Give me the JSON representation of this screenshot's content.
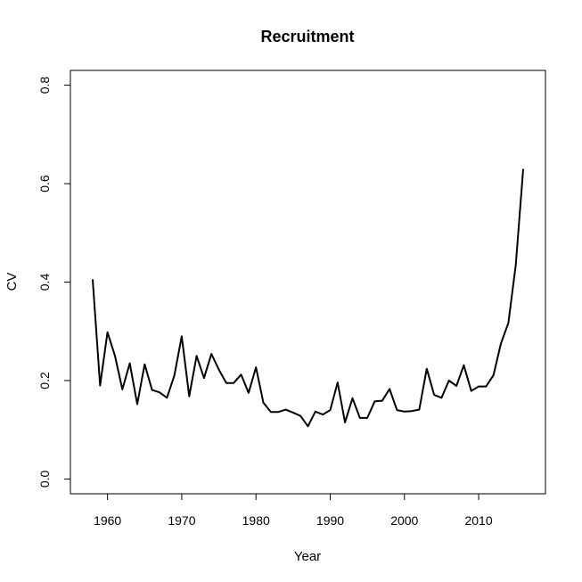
{
  "chart_data": {
    "type": "line",
    "title": "Recruitment",
    "xlabel": "Year",
    "ylabel": "CV",
    "xlim": [
      1955,
      2019
    ],
    "ylim": [
      -0.03,
      0.83
    ],
    "x_ticks": [
      1960,
      1970,
      1980,
      1990,
      2000,
      2010
    ],
    "y_ticks": [
      0.0,
      0.2,
      0.4,
      0.6,
      0.8
    ],
    "x_tick_labels": [
      "1960",
      "1970",
      "1980",
      "1990",
      "2000",
      "2010"
    ],
    "y_tick_labels": [
      "0.0",
      "0.2",
      "0.4",
      "0.6",
      "0.8"
    ],
    "grid": false,
    "line_color": "#000000",
    "x": [
      1958,
      1959,
      1960,
      1961,
      1962,
      1963,
      1964,
      1965,
      1966,
      1967,
      1968,
      1969,
      1970,
      1971,
      1972,
      1973,
      1974,
      1975,
      1976,
      1977,
      1978,
      1979,
      1980,
      1981,
      1982,
      1983,
      1984,
      1985,
      1986,
      1987,
      1988,
      1989,
      1990,
      1991,
      1992,
      1993,
      1994,
      1995,
      1996,
      1997,
      1998,
      1999,
      2000,
      2001,
      2002,
      2003,
      2004,
      2005,
      2006,
      2007,
      2008,
      2009,
      2010,
      2011,
      2012,
      2013,
      2014,
      2015,
      2016
    ],
    "series": [
      {
        "values": [
          0.405,
          0.19,
          0.298,
          0.25,
          0.182,
          0.235,
          0.152,
          0.233,
          0.181,
          0.176,
          0.165,
          0.21,
          0.29,
          0.168,
          0.25,
          0.205,
          0.254,
          0.222,
          0.195,
          0.195,
          0.212,
          0.175,
          0.227,
          0.155,
          0.136,
          0.136,
          0.141,
          0.135,
          0.128,
          0.107,
          0.137,
          0.131,
          0.14,
          0.196,
          0.115,
          0.164,
          0.124,
          0.124,
          0.158,
          0.159,
          0.183,
          0.14,
          0.137,
          0.138,
          0.141,
          0.224,
          0.171,
          0.165,
          0.2,
          0.189,
          0.231,
          0.179,
          0.188,
          0.188,
          0.211,
          0.275,
          0.317,
          0.435,
          0.629
        ]
      }
    ]
  }
}
